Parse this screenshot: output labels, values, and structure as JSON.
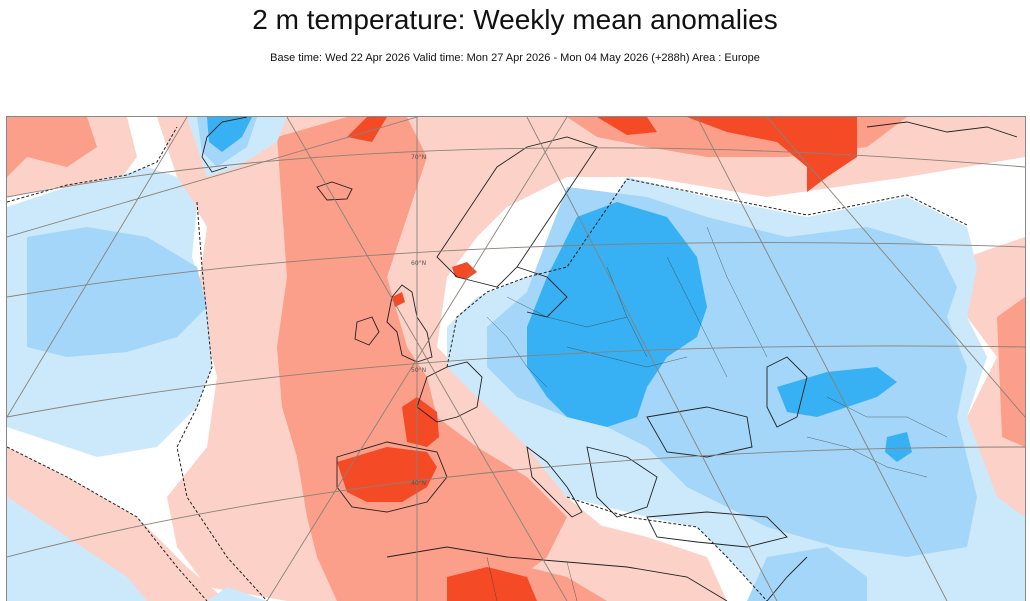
{
  "chart": {
    "title": "2 m temperature: Weekly mean anomalies",
    "subtitle": "Base time: Wed 22 Apr 2026 Valid time: Mon 27 Apr 2026 - Mon 04 May 2026 (+288h) Area : Europe",
    "area": "Europe",
    "parameter": "2 m temperature weekly mean anomaly",
    "latitude_labels": [
      "70°N",
      "60°N",
      "50°N",
      "40°N"
    ]
  },
  "colors": {
    "warm_strong": "#f54a26",
    "warm_moderate": "#fb9e8a",
    "warm_weak": "#fcd2c8",
    "neutral": "#ffffff",
    "cold_weak": "#cbe9fb",
    "cold_moderate": "#a3d6f8",
    "cold_strong": "#37b1f3",
    "coastline": "#222222",
    "graticule": "#8a8278"
  },
  "regions": [
    {
      "name": "atlantic-warm-tongue",
      "category": "warm_moderate"
    },
    {
      "name": "iberia-warm-core",
      "category": "warm_strong"
    },
    {
      "name": "biscay-warm-core",
      "category": "warm_strong"
    },
    {
      "name": "north-africa-warm-core",
      "category": "warm_strong"
    },
    {
      "name": "arctic-warm-core",
      "category": "warm_strong"
    },
    {
      "name": "central-europe-cold-core",
      "category": "cold_strong"
    },
    {
      "name": "greenland-cold-core",
      "category": "cold_strong"
    },
    {
      "name": "caspian-cold-core",
      "category": "cold_strong"
    },
    {
      "name": "west-atlantic-cold",
      "category": "cold_moderate"
    },
    {
      "name": "east-europe-cold",
      "category": "cold_moderate"
    }
  ]
}
